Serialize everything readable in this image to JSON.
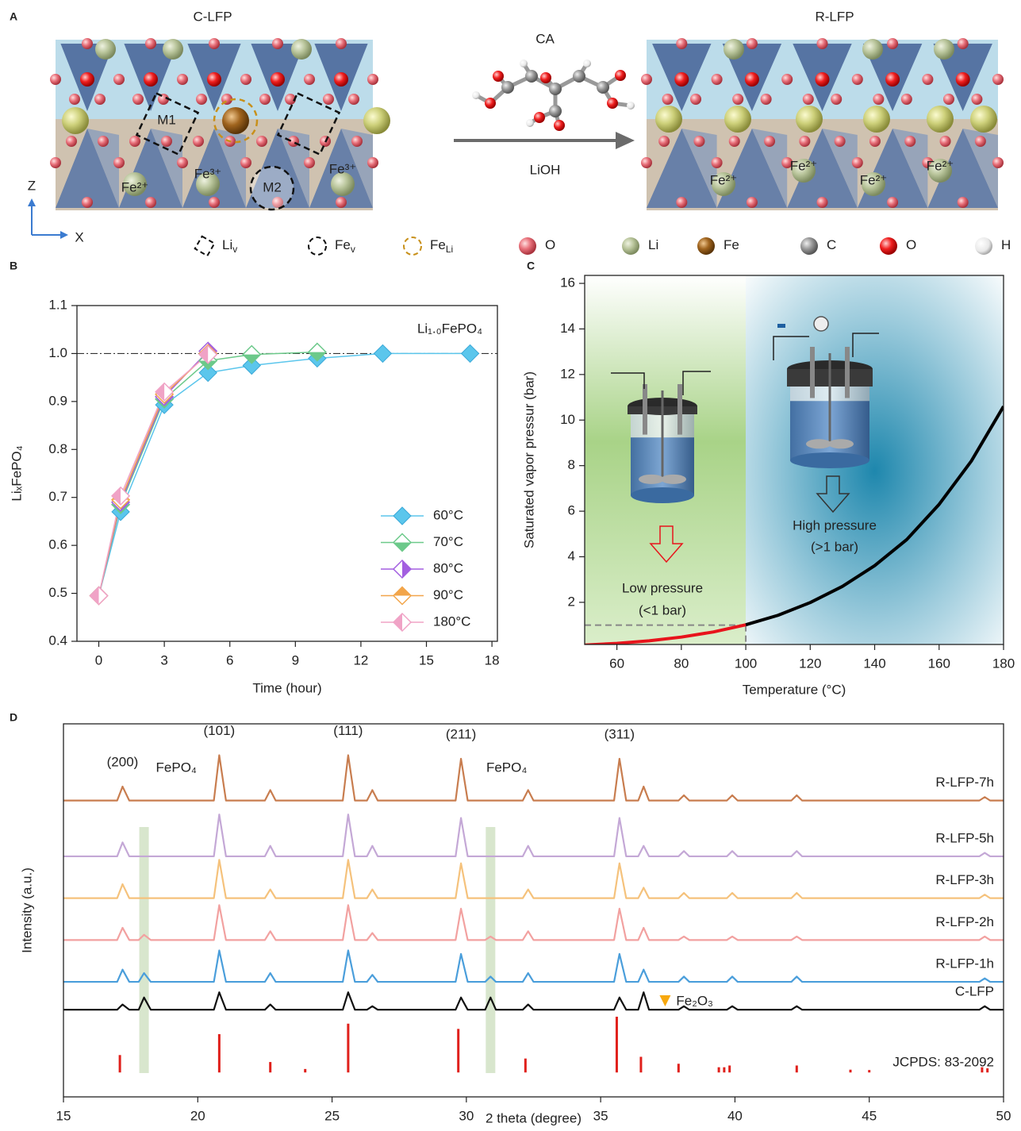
{
  "panel_a": {
    "label": "A",
    "left_title": "C-LFP",
    "right_title": "R-LFP",
    "reagent": "CA",
    "condition": "LiOH",
    "sites": [
      "M1",
      "M2"
    ],
    "left_ions": [
      "Fe²⁺",
      "Fe³⁺",
      "Fe³⁺"
    ],
    "right_ions": [
      "Fe²⁺",
      "Fe²⁺",
      "Fe²⁺",
      "Fe²⁺"
    ],
    "axes": [
      "Z",
      "X"
    ],
    "legend": [
      {
        "text": "Li",
        "sub": "v"
      },
      {
        "text": "Fe",
        "sub": "v"
      },
      {
        "text": "Fe",
        "sub": "Li"
      },
      {
        "text": "O"
      },
      {
        "text": "Li"
      },
      {
        "text": "Fe"
      },
      {
        "text": "C"
      },
      {
        "text": "O"
      },
      {
        "text": "H"
      }
    ]
  },
  "chart_data": [
    {
      "panel": "B",
      "type": "line",
      "x_label": "Time (hour)",
      "y_label": "LiₓFePO₄",
      "xlim": [
        -1,
        18.25
      ],
      "xticks": [
        0,
        3,
        6,
        9,
        12,
        15,
        18
      ],
      "ylim": [
        0.4,
        1.1
      ],
      "yticks": [
        0.4,
        0.5,
        0.6,
        0.7,
        0.8,
        0.9,
        {
          "value": 1,
          "label": "1.0"
        },
        1.1
      ],
      "reference_line": 1,
      "annotation": "Li₁.₀FePO₄",
      "legend": "lower right",
      "series": [
        {
          "name": "60°C",
          "color": "#5bc6ec",
          "marker": "full",
          "x": [
            0,
            1,
            3,
            5,
            7,
            10,
            13,
            17
          ],
          "values": [
            0.495,
            0.67,
            0.893,
            0.96,
            0.975,
            0.99,
            1.0,
            1.0
          ]
        },
        {
          "name": "70°C",
          "color": "#6cc98a",
          "marker": "bottom",
          "x": [
            0,
            1,
            3,
            5,
            7,
            10
          ],
          "values": [
            0.495,
            0.685,
            0.905,
            0.985,
            0.998,
            1.003
          ]
        },
        {
          "name": "80°C",
          "color": "#a35fe0",
          "marker": "right",
          "x": [
            0,
            1,
            3,
            5
          ],
          "values": [
            0.495,
            0.69,
            0.91,
            1.005
          ]
        },
        {
          "name": "90°C",
          "color": "#f2a54a",
          "marker": "top",
          "x": [
            0,
            1,
            3,
            5
          ],
          "values": [
            0.495,
            0.695,
            0.915,
            1.0
          ]
        },
        {
          "name": "180°C",
          "color": "#f0a3c6",
          "marker": "left",
          "x": [
            0,
            1,
            3,
            5
          ],
          "values": [
            0.495,
            0.703,
            0.92,
            0.998
          ]
        }
      ]
    },
    {
      "panel": "C",
      "type": "line",
      "x_label": "Temperature (°C)",
      "y_label": "Saturated vapor pressur (bar)",
      "xlim": [
        50,
        180
      ],
      "xticks": [
        60,
        80,
        100,
        120,
        140,
        160,
        180
      ],
      "ylim": [
        0.15,
        16.35
      ],
      "yticks": [
        2,
        4,
        6,
        8,
        10,
        12,
        14,
        16
      ],
      "reference_line": {
        "x": 100,
        "y": 1
      },
      "annotations": [
        {
          "text": "Low pressure",
          "color": "#e8141c"
        },
        {
          "text": "(<1 bar)",
          "color": "#e8141c"
        },
        {
          "text": "High pressure",
          "color": "#222222"
        },
        {
          "text": "(>1 bar)",
          "color": "#222222"
        }
      ],
      "series": [
        {
          "color": "#e8141c",
          "x": [
            50,
            60,
            70,
            80,
            90,
            100
          ],
          "values": [
            0.123,
            0.199,
            0.312,
            0.474,
            0.701,
            1.013
          ]
        },
        {
          "color": "#000000",
          "x": [
            100,
            110,
            120,
            130,
            140,
            150,
            160,
            170,
            180
          ],
          "values": [
            1.013,
            1.43,
            1.99,
            2.7,
            3.61,
            4.76,
            6.3,
            8.2,
            10.6
          ]
        }
      ]
    },
    {
      "panel": "D",
      "type": "line",
      "x_label": "2 theta (degree)",
      "y_label": "Intensity (a.u.)",
      "xlim": [
        15,
        50
      ],
      "xticks": [
        15,
        20,
        25,
        30,
        35,
        40,
        45,
        50
      ],
      "ylim": [
        -7,
        100
      ],
      "highlight_bands": [
        18.0,
        30.9
      ],
      "peak_labels": [
        {
          "text": "(200)",
          "x": 17.2
        },
        {
          "text": "(101)",
          "x": 20.8
        },
        {
          "text": "(111)",
          "x": 25.6
        },
        {
          "text": "(211)",
          "x": 29.8
        },
        {
          "text": "(311)",
          "x": 35.7
        }
      ],
      "other_labels": [
        {
          "text": "FePO₄",
          "x": 19.2
        },
        {
          "text": "FePO₄",
          "x": 31.5
        },
        {
          "text": "Fe₂O₃",
          "x": 37.4
        }
      ],
      "x": [
        15,
        17.0,
        17.2,
        17.45,
        17.8,
        18.0,
        18.25,
        20.6,
        20.8,
        21.05,
        22.5,
        22.7,
        22.9,
        25.4,
        25.6,
        25.85,
        26.3,
        26.5,
        26.7,
        29.6,
        29.8,
        30.05,
        30.7,
        30.9,
        31.1,
        32.1,
        32.3,
        32.5,
        35.5,
        35.7,
        35.95,
        36.4,
        36.6,
        36.8,
        37.9,
        38.1,
        38.3,
        39.7,
        39.9,
        40.1,
        42.1,
        42.3,
        42.5,
        49.1,
        49.3,
        49.5,
        50
      ],
      "series": [
        {
          "name": "R-LFP-7h",
          "color": "#c87d4f",
          "values": [
            78,
            78,
            82,
            78,
            78,
            78,
            78,
            78,
            91,
            78,
            78,
            81,
            78,
            78,
            91,
            78,
            78,
            81,
            78,
            78,
            90,
            78,
            78,
            78,
            78,
            78,
            81,
            78,
            78,
            90,
            78,
            78,
            82,
            78,
            78,
            79.5,
            78,
            78,
            79.5,
            78,
            78,
            79.5,
            78,
            78,
            79,
            78,
            78
          ]
        },
        {
          "name": "R-LFP-5h",
          "color": "#c4a8d6",
          "values": [
            62,
            62,
            66,
            62,
            62,
            62,
            62,
            62,
            74,
            62,
            62,
            65,
            62,
            62,
            74,
            62,
            62,
            65,
            62,
            62,
            73,
            62,
            62,
            62,
            62,
            62,
            65,
            62,
            62,
            73,
            62,
            62,
            65,
            62,
            62,
            63.5,
            62,
            62,
            63.5,
            62,
            62,
            63.5,
            62,
            62,
            63,
            62,
            62
          ]
        },
        {
          "name": "R-LFP-3h",
          "color": "#f5c27c",
          "values": [
            50,
            50,
            54,
            50,
            50,
            50,
            50,
            50,
            61,
            50,
            50,
            52.5,
            50,
            50,
            61,
            50,
            50,
            52.5,
            50,
            50,
            60,
            50,
            50,
            50,
            50,
            50,
            52.5,
            50,
            50,
            60,
            50,
            50,
            53,
            50,
            50,
            51.5,
            50,
            50,
            51.5,
            50,
            50,
            51.5,
            50,
            50,
            51,
            50,
            50
          ]
        },
        {
          "name": "R-LFP-2h",
          "color": "#f2a1a0",
          "values": [
            38,
            38,
            41.5,
            38,
            38,
            39.5,
            38,
            38,
            48,
            38,
            38,
            40.5,
            38,
            38,
            48,
            38,
            38,
            40,
            38,
            38,
            47,
            38,
            38,
            39,
            38,
            38,
            40.5,
            38,
            38,
            47,
            38,
            38,
            41.5,
            38,
            38,
            39,
            38,
            38,
            39,
            38,
            38,
            39,
            38,
            38,
            39,
            38,
            38
          ]
        },
        {
          "name": "R-LFP-1h",
          "color": "#4a9edb",
          "values": [
            26,
            26,
            29.5,
            26,
            26,
            28.5,
            26,
            26,
            35,
            26,
            26,
            28.5,
            26,
            26,
            35,
            26,
            26,
            28,
            26,
            26,
            34,
            26,
            26,
            27.5,
            26,
            26,
            28.5,
            26,
            26,
            34,
            26,
            26,
            29.5,
            26,
            26,
            27.5,
            26,
            26,
            27.5,
            26,
            26,
            27.5,
            26,
            26,
            27,
            26,
            26
          ]
        },
        {
          "name": "C-LFP",
          "color": "#111111",
          "values": [
            18,
            18,
            19.5,
            18,
            18,
            21.5,
            18,
            18,
            23,
            18,
            18,
            19.5,
            18,
            18,
            23,
            18,
            18,
            19,
            18,
            18,
            21.5,
            18,
            18,
            21.5,
            18,
            18,
            19.5,
            18,
            18,
            21.5,
            18,
            18,
            23,
            18,
            18,
            19,
            18,
            18,
            19,
            18,
            18,
            19,
            18,
            18,
            19,
            18,
            18
          ]
        }
      ],
      "reference": {
        "name": "JCPDS: 83-2092",
        "color": "#e0201b",
        "x": [
          17.1,
          20.8,
          22.7,
          24.0,
          25.6,
          29.7,
          32.2,
          35.6,
          36.5,
          37.9,
          39.4,
          39.6,
          39.8,
          42.3,
          44.3,
          45.0,
          49.2,
          49.4
        ],
        "values": [
          5,
          11,
          3,
          1,
          14,
          12.5,
          4,
          16,
          4.5,
          2.5,
          1.5,
          1.5,
          2,
          2,
          0.8,
          0.7,
          1.5,
          1.2
        ]
      }
    }
  ]
}
